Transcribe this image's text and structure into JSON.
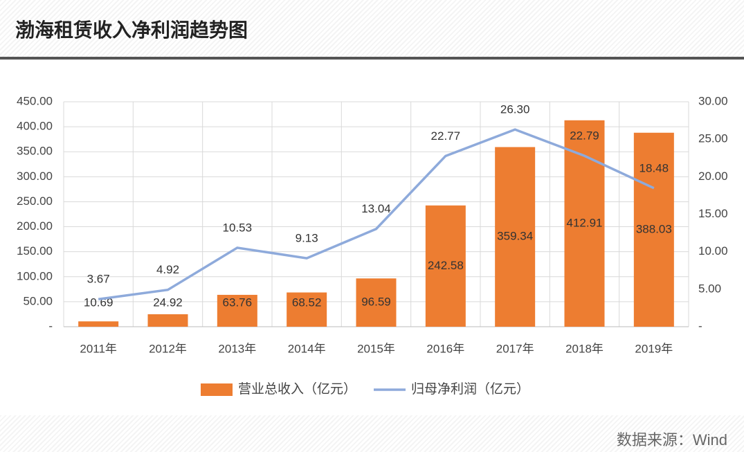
{
  "header": {
    "title": "渤海租赁收入净利润趋势图"
  },
  "chart_data": {
    "type": "combo",
    "categories": [
      "2011年",
      "2012年",
      "2013年",
      "2014年",
      "2015年",
      "2016年",
      "2017年",
      "2018年",
      "2019年"
    ],
    "series": [
      {
        "name": "营业总收入（亿元）",
        "type": "bar",
        "axis": "y",
        "color": "#ed7d31",
        "values": [
          10.69,
          24.92,
          63.76,
          68.52,
          96.59,
          242.58,
          359.34,
          412.91,
          388.03
        ]
      },
      {
        "name": "归母净利润（亿元）",
        "type": "line",
        "axis": "y2",
        "color": "#8eaadb",
        "values": [
          3.67,
          4.92,
          10.53,
          9.13,
          13.04,
          22.77,
          26.3,
          22.79,
          18.48
        ],
        "value_labels": [
          "3.67",
          "4.92",
          "10.53",
          "9.13",
          "13.04",
          "22.77",
          "26.30",
          "22.79",
          "18.48"
        ]
      }
    ],
    "ylim": [
      0,
      450
    ],
    "yticks": [
      {
        "value": 0,
        "label": "-"
      },
      {
        "value": 50,
        "label": "50.00"
      },
      {
        "value": 100,
        "label": "100.00"
      },
      {
        "value": 150,
        "label": "150.00"
      },
      {
        "value": 200,
        "label": "200.00"
      },
      {
        "value": 250,
        "label": "250.00"
      },
      {
        "value": 300,
        "label": "300.00"
      },
      {
        "value": 350,
        "label": "350.00"
      },
      {
        "value": 400,
        "label": "400.00"
      },
      {
        "value": 450,
        "label": "450.00"
      }
    ],
    "y2lim": [
      0,
      30
    ],
    "y2ticks": [
      {
        "value": 0,
        "label": "-"
      },
      {
        "value": 5,
        "label": "5.00"
      },
      {
        "value": 10,
        "label": "10.00"
      },
      {
        "value": 15,
        "label": "15.00"
      },
      {
        "value": 20,
        "label": "20.00"
      },
      {
        "value": 25,
        "label": "25.00"
      },
      {
        "value": 30,
        "label": "30.00"
      }
    ],
    "grid": true,
    "legend": "bottom"
  },
  "footer": {
    "source": "数据来源：Wind"
  }
}
